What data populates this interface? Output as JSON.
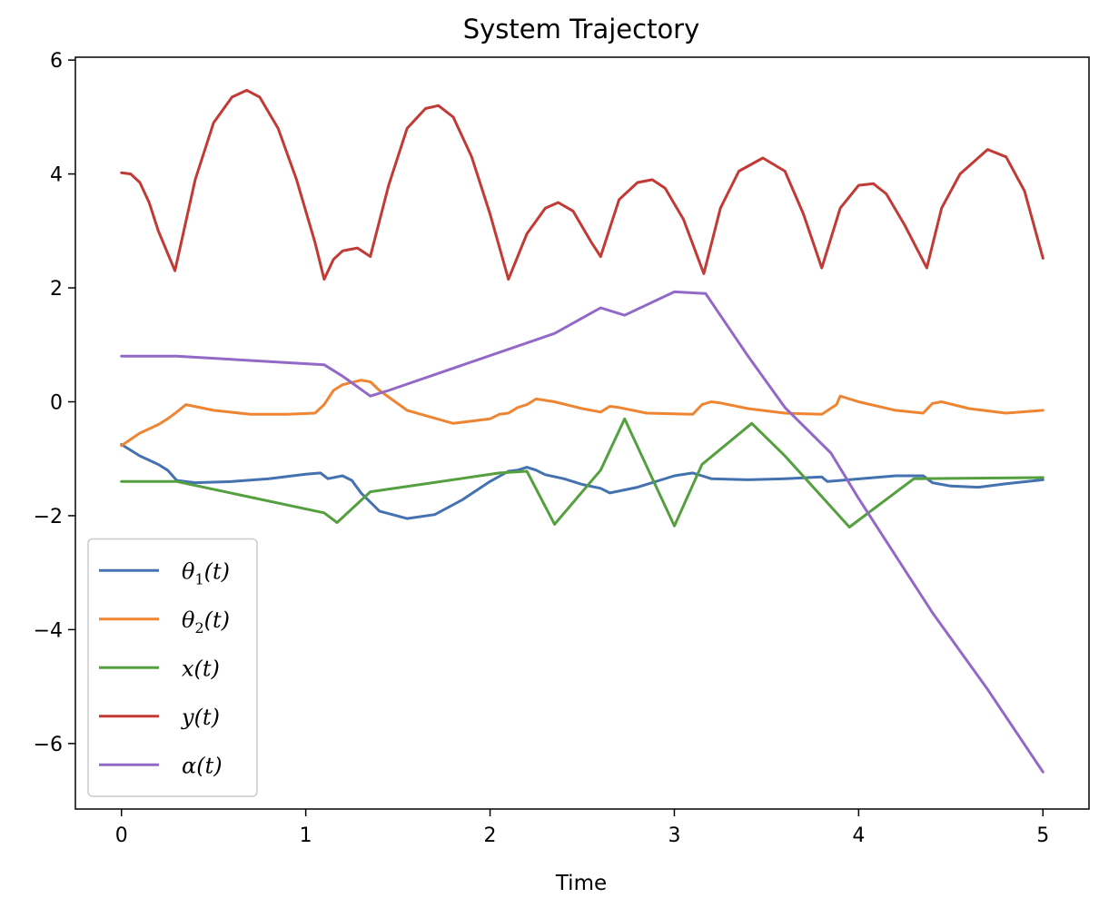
{
  "chart_data": {
    "type": "line",
    "title": "System Trajectory",
    "xlabel": "Time",
    "ylabel": "",
    "xlim": [
      -0.25,
      5.25
    ],
    "ylim": [
      -7.15,
      6.05
    ],
    "xticks": [
      0,
      1,
      2,
      3,
      4,
      5
    ],
    "yticks": [
      6,
      4,
      2,
      0,
      -2,
      -4,
      -6
    ],
    "xtick_labels": [
      "0",
      "1",
      "2",
      "3",
      "4",
      "5"
    ],
    "ytick_labels": [
      "6",
      "4",
      "2",
      "0",
      "−2",
      "−4",
      "−6"
    ],
    "grid": false,
    "legend_position": "lower-left",
    "series": [
      {
        "key": "theta1",
        "name": "θ",
        "subscript": "1",
        "suffix": "(t)",
        "color": "#4472b0",
        "x": [
          0,
          0.1,
          0.2,
          0.25,
          0.3,
          0.4,
          0.6,
          0.8,
          1.0,
          1.08,
          1.12,
          1.2,
          1.25,
          1.3,
          1.4,
          1.55,
          1.7,
          1.85,
          2.0,
          2.1,
          2.15,
          2.2,
          2.25,
          2.3,
          2.4,
          2.5,
          2.6,
          2.65,
          2.8,
          3.0,
          3.1,
          3.15,
          3.2,
          3.4,
          3.6,
          3.8,
          3.83,
          3.9,
          4.2,
          4.35,
          4.4,
          4.5,
          4.65,
          4.8,
          5.0
        ],
        "y": [
          -0.75,
          -0.95,
          -1.1,
          -1.2,
          -1.38,
          -1.42,
          -1.4,
          -1.35,
          -1.27,
          -1.25,
          -1.35,
          -1.3,
          -1.38,
          -1.6,
          -1.92,
          -2.05,
          -1.98,
          -1.72,
          -1.4,
          -1.22,
          -1.2,
          -1.15,
          -1.2,
          -1.28,
          -1.35,
          -1.45,
          -1.52,
          -1.6,
          -1.5,
          -1.3,
          -1.25,
          -1.3,
          -1.35,
          -1.37,
          -1.35,
          -1.32,
          -1.4,
          -1.38,
          -1.3,
          -1.3,
          -1.42,
          -1.48,
          -1.5,
          -1.44,
          -1.37
        ]
      },
      {
        "key": "theta2",
        "name": "θ",
        "subscript": "2",
        "suffix": "(t)",
        "color": "#ee8533",
        "x": [
          0,
          0.1,
          0.2,
          0.25,
          0.3,
          0.35,
          0.5,
          0.7,
          0.9,
          1.05,
          1.1,
          1.15,
          1.2,
          1.3,
          1.35,
          1.4,
          1.55,
          1.8,
          2.0,
          2.05,
          2.1,
          2.15,
          2.2,
          2.25,
          2.35,
          2.5,
          2.6,
          2.65,
          2.7,
          2.85,
          3.1,
          3.15,
          3.2,
          3.25,
          3.4,
          3.6,
          3.8,
          3.88,
          3.9,
          4.0,
          4.2,
          4.35,
          4.4,
          4.45,
          4.6,
          4.8,
          5.0
        ],
        "y": [
          -0.77,
          -0.55,
          -0.4,
          -0.3,
          -0.18,
          -0.05,
          -0.15,
          -0.22,
          -0.22,
          -0.2,
          -0.05,
          0.2,
          0.3,
          0.38,
          0.35,
          0.2,
          -0.15,
          -0.38,
          -0.3,
          -0.22,
          -0.2,
          -0.1,
          -0.05,
          0.05,
          0.0,
          -0.12,
          -0.18,
          -0.08,
          -0.1,
          -0.2,
          -0.22,
          -0.05,
          0.0,
          -0.02,
          -0.12,
          -0.2,
          -0.22,
          -0.05,
          0.1,
          0.0,
          -0.15,
          -0.2,
          -0.03,
          0.0,
          -0.12,
          -0.2,
          -0.15
        ]
      },
      {
        "key": "x",
        "name": "x",
        "subscript": "",
        "suffix": "(t)",
        "color": "#54a03f",
        "x": [
          0,
          0.3,
          1.1,
          1.17,
          1.35,
          2.05,
          2.2,
          2.35,
          2.6,
          2.73,
          3.0,
          3.15,
          3.42,
          3.6,
          3.95,
          4.3,
          5.0
        ],
        "y": [
          -1.4,
          -1.4,
          -1.95,
          -2.12,
          -1.58,
          -1.25,
          -1.22,
          -2.15,
          -1.2,
          -0.3,
          -2.18,
          -1.1,
          -0.38,
          -0.95,
          -2.2,
          -1.35,
          -1.33
        ]
      },
      {
        "key": "y",
        "name": "y",
        "subscript": "",
        "suffix": "(t)",
        "color": "#c23a35",
        "x": [
          0,
          0.05,
          0.1,
          0.15,
          0.2,
          0.29,
          0.4,
          0.5,
          0.6,
          0.68,
          0.75,
          0.85,
          0.95,
          1.05,
          1.1,
          1.15,
          1.2,
          1.28,
          1.35,
          1.45,
          1.55,
          1.65,
          1.72,
          1.8,
          1.9,
          2.0,
          2.1,
          2.2,
          2.3,
          2.37,
          2.45,
          2.55,
          2.6,
          2.7,
          2.8,
          2.88,
          2.95,
          3.05,
          3.16,
          3.25,
          3.35,
          3.48,
          3.6,
          3.7,
          3.8,
          3.9,
          4.0,
          4.08,
          4.15,
          4.25,
          4.37,
          4.45,
          4.55,
          4.7,
          4.8,
          4.9,
          5.0
        ],
        "y": [
          4.02,
          4.0,
          3.85,
          3.5,
          3.0,
          2.3,
          3.9,
          4.9,
          5.35,
          5.47,
          5.35,
          4.8,
          3.9,
          2.8,
          2.15,
          2.5,
          2.65,
          2.7,
          2.55,
          3.8,
          4.8,
          5.15,
          5.2,
          5.0,
          4.3,
          3.3,
          2.15,
          2.95,
          3.4,
          3.5,
          3.35,
          2.8,
          2.55,
          3.55,
          3.85,
          3.9,
          3.75,
          3.2,
          2.25,
          3.4,
          4.05,
          4.28,
          4.05,
          3.3,
          2.35,
          3.4,
          3.8,
          3.83,
          3.65,
          3.1,
          2.35,
          3.4,
          4.0,
          4.43,
          4.3,
          3.7,
          2.52
        ]
      },
      {
        "key": "alpha",
        "name": "α",
        "subscript": "",
        "suffix": "(t)",
        "color": "#9269c7",
        "x": [
          0,
          0.3,
          1.1,
          1.2,
          1.35,
          1.45,
          2.35,
          2.6,
          2.73,
          3.0,
          3.17,
          3.4,
          3.6,
          3.85,
          4.0,
          4.4,
          4.7,
          5.0
        ],
        "y": [
          0.8,
          0.8,
          0.65,
          0.45,
          0.1,
          0.2,
          1.2,
          1.65,
          1.52,
          1.93,
          1.9,
          0.8,
          -0.1,
          -0.9,
          -1.7,
          -3.7,
          -5.05,
          -6.5
        ]
      }
    ]
  }
}
